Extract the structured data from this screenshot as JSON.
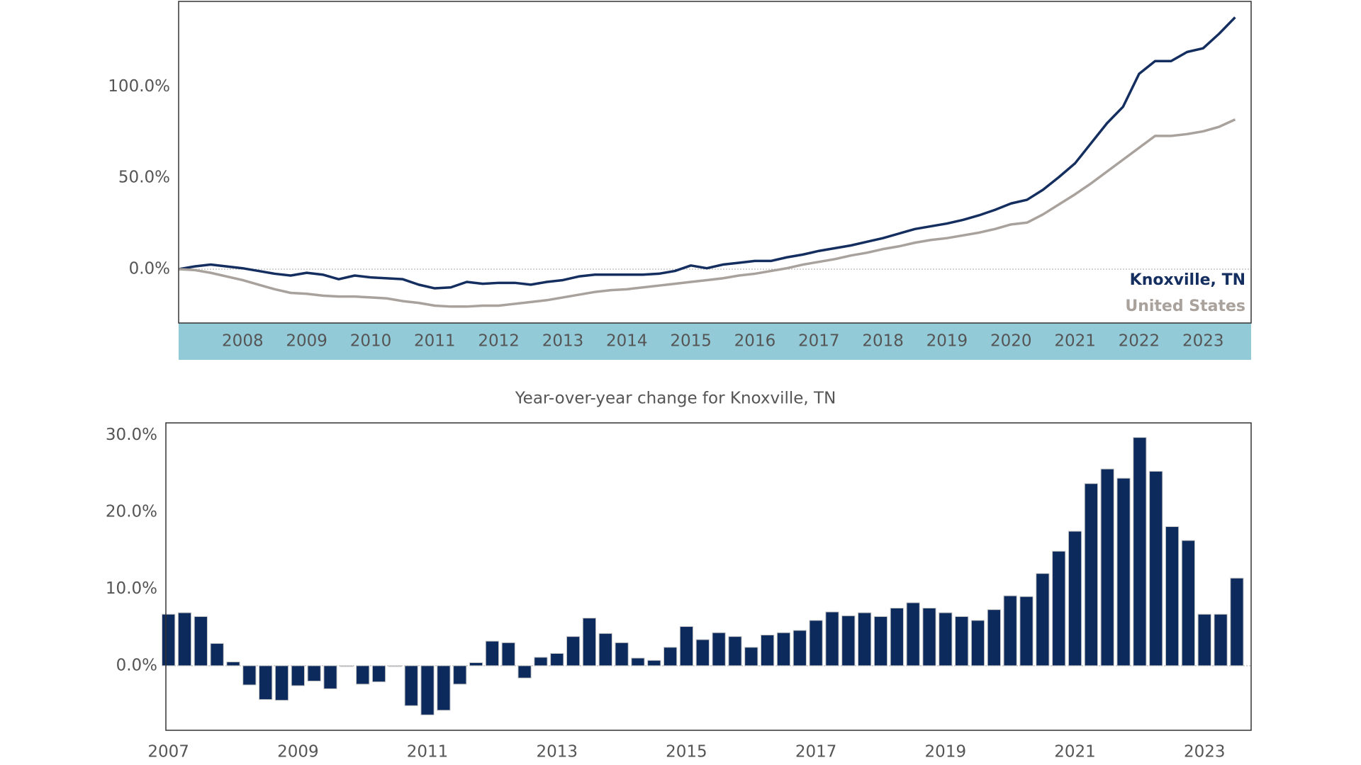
{
  "chart_data": [
    {
      "type": "line",
      "x": [
        2007,
        2007.25,
        2007.5,
        2007.75,
        2008,
        2008.25,
        2008.5,
        2008.75,
        2009,
        2009.25,
        2009.5,
        2009.75,
        2010,
        2010.25,
        2010.5,
        2010.75,
        2011,
        2011.25,
        2011.5,
        2011.75,
        2012,
        2012.25,
        2012.5,
        2012.75,
        2013,
        2013.25,
        2013.5,
        2013.75,
        2014,
        2014.25,
        2014.5,
        2014.75,
        2015,
        2015.25,
        2015.5,
        2015.75,
        2016,
        2016.25,
        2016.5,
        2016.75,
        2017,
        2017.25,
        2017.5,
        2017.75,
        2018,
        2018.25,
        2018.5,
        2018.75,
        2019,
        2019.25,
        2019.5,
        2019.75,
        2020,
        2020.25,
        2020.5,
        2020.75,
        2021,
        2021.25,
        2021.5,
        2021.75,
        2022,
        2022.25,
        2022.5,
        2022.75,
        2023,
        2023.25,
        2023.5
      ],
      "series": [
        {
          "name": "Knoxville, TN",
          "color": "#142e5f",
          "values": [
            0,
            1.5,
            2.5,
            1.5,
            0.5,
            -1,
            -2.5,
            -3.5,
            -2,
            -3,
            -5.5,
            -3.5,
            -4.5,
            -5,
            -5.5,
            -8.5,
            -10.5,
            -10,
            -7,
            -8,
            -7.5,
            -7.5,
            -8.5,
            -7,
            -6,
            -4,
            -3,
            -3,
            -3,
            -3,
            -2.5,
            -1,
            2,
            0.5,
            2.5,
            3.5,
            4.5,
            4.5,
            6.5,
            8,
            10,
            11.5,
            13,
            15,
            17,
            19.5,
            22,
            23.5,
            25,
            27,
            29.5,
            32.5,
            36,
            38,
            43.5,
            50.5,
            58,
            69,
            80,
            89,
            107,
            114,
            114,
            119,
            121,
            129,
            138
          ]
        },
        {
          "name": "United States",
          "color": "#a8a19c",
          "values": [
            0,
            -0.5,
            -2,
            -4,
            -6,
            -8.5,
            -11,
            -13,
            -13.5,
            -14.5,
            -15,
            -15,
            -15.5,
            -16,
            -17.5,
            -18.5,
            -20,
            -20.5,
            -20.5,
            -20,
            -20,
            -19,
            -18,
            -17,
            -15.5,
            -14,
            -12.5,
            -11.5,
            -11,
            -10,
            -9,
            -8,
            -7,
            -6,
            -5,
            -3.5,
            -2.5,
            -1,
            0.5,
            2.5,
            4,
            5.5,
            7.5,
            9,
            11,
            12.5,
            14.5,
            16,
            17,
            18.5,
            20,
            22,
            24.5,
            25.5,
            30,
            35.5,
            41,
            47,
            53.5,
            60,
            66.5,
            73,
            73,
            74,
            75.5,
            78,
            82
          ]
        }
      ],
      "xlim": [
        2007,
        2023.75
      ],
      "xticks": [
        2008,
        2009,
        2010,
        2011,
        2012,
        2013,
        2014,
        2015,
        2016,
        2017,
        2018,
        2019,
        2020,
        2021,
        2022,
        2023
      ],
      "ylim": [
        -29.5,
        146.7
      ],
      "yticks": [
        {
          "value": 0,
          "label": "0.0%"
        },
        {
          "value": 50,
          "label": "50.0%"
        },
        {
          "value": 100,
          "label": "100.0%"
        }
      ]
    },
    {
      "type": "bar",
      "title": "Year-over-year change for Knoxville, TN",
      "color": "#0d2a5c",
      "x": [
        2007,
        2007.25,
        2007.5,
        2007.75,
        2008,
        2008.25,
        2008.5,
        2008.75,
        2009,
        2009.25,
        2009.5,
        2009.75,
        2010,
        2010.25,
        2010.5,
        2010.75,
        2011,
        2011.25,
        2011.5,
        2011.75,
        2012,
        2012.25,
        2012.5,
        2012.75,
        2013,
        2013.25,
        2013.5,
        2013.75,
        2014,
        2014.25,
        2014.5,
        2014.75,
        2015,
        2015.25,
        2015.5,
        2015.75,
        2016,
        2016.25,
        2016.5,
        2016.75,
        2017,
        2017.25,
        2017.5,
        2017.75,
        2018,
        2018.25,
        2018.5,
        2018.75,
        2019,
        2019.25,
        2019.5,
        2019.75,
        2020,
        2020.25,
        2020.5,
        2020.75,
        2021,
        2021.25,
        2021.5,
        2021.75,
        2022,
        2022.25,
        2022.5,
        2022.75,
        2023,
        2023.25,
        2023.5
      ],
      "values": [
        6.7,
        6.9,
        6.4,
        2.9,
        0.5,
        -2.5,
        -4.4,
        -4.5,
        -2.6,
        -2.0,
        -3.0,
        -0.1,
        -2.4,
        -2.1,
        -0.1,
        -5.2,
        -6.4,
        -5.8,
        -2.4,
        0.4,
        3.2,
        3.0,
        -1.6,
        1.1,
        1.6,
        3.8,
        6.2,
        4.2,
        3.0,
        1.0,
        0.7,
        2.4,
        5.1,
        3.4,
        4.3,
        3.8,
        2.4,
        4.0,
        4.3,
        4.6,
        5.9,
        7.0,
        6.5,
        6.9,
        6.4,
        7.5,
        8.2,
        7.5,
        6.9,
        6.4,
        5.9,
        7.3,
        9.1,
        9.0,
        12.0,
        14.9,
        17.5,
        23.7,
        25.6,
        24.4,
        29.7,
        25.3,
        18.1,
        16.3,
        6.7,
        6.7,
        11.4
      ],
      "xlim": [
        2006.96,
        2023.72
      ],
      "xticks": [
        2007,
        2009,
        2011,
        2013,
        2015,
        2017,
        2019,
        2021,
        2023
      ],
      "ylim": [
        -8.4,
        31.6
      ],
      "yticks": [
        {
          "value": 0,
          "label": "0.0%"
        },
        {
          "value": 10,
          "label": "10.0%"
        },
        {
          "value": 20,
          "label": "20.0%"
        },
        {
          "value": 30,
          "label": "30.0%"
        }
      ]
    }
  ]
}
